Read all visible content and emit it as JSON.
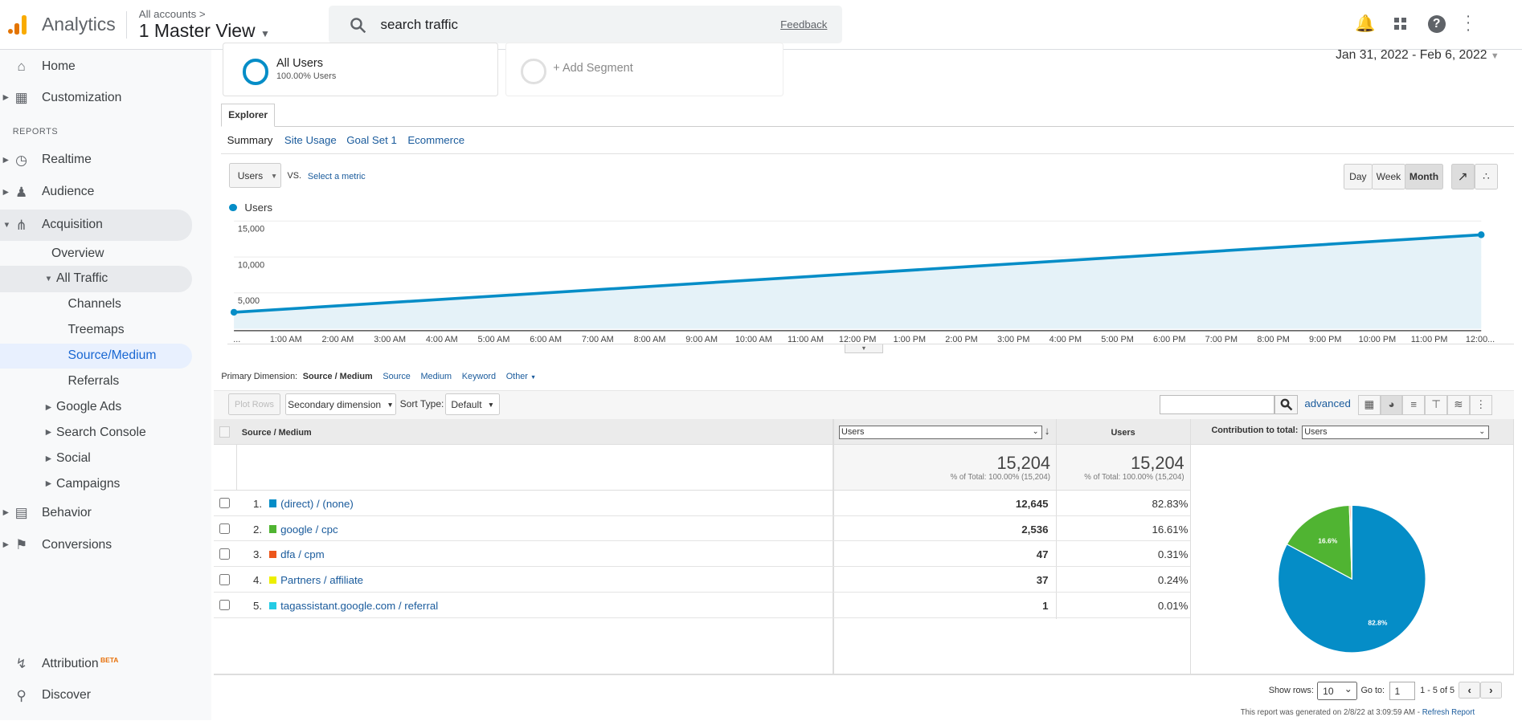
{
  "header": {
    "app_name": "Analytics",
    "breadcrumb": "All accounts >",
    "view_name": "1 Master View",
    "search_value": "search traffic",
    "feedback": "Feedback"
  },
  "sidebar": {
    "home": "Home",
    "customization": "Customization",
    "reports_label": "REPORTS",
    "realtime": "Realtime",
    "audience": "Audience",
    "acquisition": "Acquisition",
    "overview": "Overview",
    "all_traffic": "All Traffic",
    "channels": "Channels",
    "treemaps": "Treemaps",
    "source_medium": "Source/Medium",
    "referrals": "Referrals",
    "google_ads": "Google Ads",
    "search_console": "Search Console",
    "social": "Social",
    "campaigns": "Campaigns",
    "behavior": "Behavior",
    "conversions": "Conversions",
    "attribution": "Attribution",
    "beta": "BETA",
    "discover": "Discover"
  },
  "segments": {
    "all_users": "All Users",
    "all_users_sub": "100.00% Users",
    "add_segment": "+ Add Segment"
  },
  "date_range": "Jan 31, 2022 - Feb 6, 2022",
  "tabs": {
    "explorer": "Explorer",
    "summary": "Summary",
    "site_usage": "Site Usage",
    "goal_set": "Goal Set 1",
    "ecommerce": "Ecommerce"
  },
  "chart_controls": {
    "metric": "Users",
    "vs": "VS.",
    "select_metric": "Select a metric",
    "day": "Day",
    "week": "Week",
    "month": "Month"
  },
  "chart_data": {
    "type": "area",
    "legend": "Users",
    "color": "#058dc7",
    "yticks": [
      "15,000",
      "10,000",
      "5,000"
    ],
    "ylim": [
      0,
      15000
    ],
    "xticks": [
      "...",
      "1:00 AM",
      "2:00 AM",
      "3:00 AM",
      "4:00 AM",
      "5:00 AM",
      "6:00 AM",
      "7:00 AM",
      "8:00 AM",
      "9:00 AM",
      "10:00 AM",
      "11:00 AM",
      "12:00 PM",
      "1:00 PM",
      "2:00 PM",
      "3:00 PM",
      "4:00 PM",
      "5:00 PM",
      "6:00 PM",
      "7:00 PM",
      "8:00 PM",
      "9:00 PM",
      "10:00 PM",
      "11:00 PM",
      "12:00..."
    ],
    "points": [
      {
        "x": "...",
        "y": 2300
      },
      {
        "x": "12:00...",
        "y": 13100
      }
    ],
    "grid": true
  },
  "dimensions": {
    "label": "Primary Dimension:",
    "active": "Source / Medium",
    "source": "Source",
    "medium": "Medium",
    "keyword": "Keyword",
    "other": "Other"
  },
  "toolbar": {
    "plot_rows": "Plot Rows",
    "secondary": "Secondary dimension",
    "sort_type": "Sort Type:",
    "sort_value": "Default",
    "advanced": "advanced"
  },
  "table": {
    "col_source": "Source / Medium",
    "col_users_select": "Users",
    "col_users": "Users",
    "contribution_label": "Contribution to total:",
    "contribution_value": "Users",
    "total": "15,204",
    "total_sub": "% of Total: 100.00% (15,204)",
    "total2": "15,204",
    "total2_sub": "% of Total: 100.00% (15,204)",
    "rows": [
      {
        "idx": "1.",
        "name": "(direct) / (none)",
        "users": "12,645",
        "pct": "82.83%",
        "color": "#058dc7",
        "value": 12645
      },
      {
        "idx": "2.",
        "name": "google / cpc",
        "users": "2,536",
        "pct": "16.61%",
        "color": "#50b432",
        "value": 2536
      },
      {
        "idx": "3.",
        "name": "dfa / cpm",
        "users": "47",
        "pct": "0.31%",
        "color": "#ed561b",
        "value": 47
      },
      {
        "idx": "4.",
        "name": "Partners / affiliate",
        "users": "37",
        "pct": "0.24%",
        "color": "#edef00",
        "value": 37
      },
      {
        "idx": "5.",
        "name": "tagassistant.google.com / referral",
        "users": "1",
        "pct": "0.01%",
        "color": "#24cbe5",
        "value": 1
      }
    ],
    "pie_labels": [
      "82.8%",
      "16.6%"
    ]
  },
  "footer": {
    "show_rows": "Show rows:",
    "rows_value": "10",
    "goto": "Go to:",
    "goto_value": "1",
    "range": "1 - 5 of 5",
    "generated": "This report was generated on 2/8/22 at 3:09:59 AM -",
    "refresh": "Refresh Report"
  }
}
